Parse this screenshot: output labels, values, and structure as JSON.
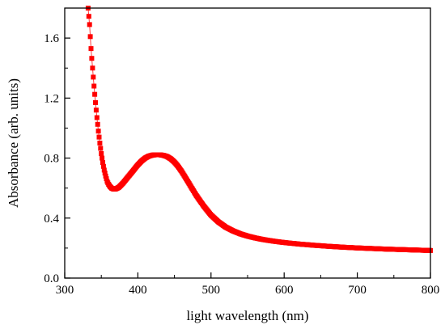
{
  "chart_data": {
    "type": "scatter",
    "title": "",
    "xlabel": "light wavelength (nm)",
    "ylabel": "Absorbance (arb. units)",
    "xlim": [
      300,
      800
    ],
    "ylim": [
      0.0,
      1.8
    ],
    "x_ticks": [
      300,
      400,
      500,
      600,
      700,
      800
    ],
    "x_tick_labels": [
      "300",
      "400",
      "500",
      "600",
      "700",
      "800"
    ],
    "y_ticks": [
      0.0,
      0.4,
      0.8,
      1.2,
      1.6
    ],
    "y_tick_labels": [
      "0.0",
      "0.4",
      "0.8",
      "1.2",
      "1.6"
    ],
    "grid": false,
    "legend": "none",
    "colors": {
      "marker": "#ff0000",
      "line": "#ff3b3b",
      "axis": "#000000"
    },
    "series": [
      {
        "marker": "square",
        "x": [
          332,
          334,
          336,
          338,
          340,
          342,
          344,
          346,
          348,
          350,
          352,
          354,
          356,
          358,
          360,
          362,
          364,
          366,
          368,
          370,
          372,
          374,
          376,
          378,
          380,
          385,
          390,
          395,
          400,
          405,
          410,
          415,
          420,
          425,
          430,
          435,
          440,
          445,
          450,
          455,
          460,
          465,
          470,
          475,
          480,
          485,
          490,
          495,
          500,
          510,
          520,
          530,
          540,
          550,
          560,
          570,
          580,
          590,
          600,
          620,
          640,
          660,
          680,
          700,
          720,
          740,
          760,
          780,
          800
        ],
        "y": [
          1.8,
          1.69,
          1.53,
          1.4,
          1.28,
          1.17,
          1.07,
          0.98,
          0.9,
          0.83,
          0.77,
          0.72,
          0.68,
          0.645,
          0.625,
          0.61,
          0.6,
          0.595,
          0.593,
          0.595,
          0.6,
          0.605,
          0.615,
          0.625,
          0.635,
          0.665,
          0.695,
          0.725,
          0.755,
          0.78,
          0.8,
          0.813,
          0.82,
          0.822,
          0.822,
          0.818,
          0.81,
          0.795,
          0.773,
          0.745,
          0.71,
          0.67,
          0.63,
          0.59,
          0.55,
          0.515,
          0.48,
          0.45,
          0.42,
          0.375,
          0.34,
          0.315,
          0.295,
          0.28,
          0.268,
          0.258,
          0.25,
          0.243,
          0.237,
          0.227,
          0.219,
          0.212,
          0.206,
          0.201,
          0.197,
          0.193,
          0.19,
          0.187,
          0.184
        ]
      }
    ]
  }
}
